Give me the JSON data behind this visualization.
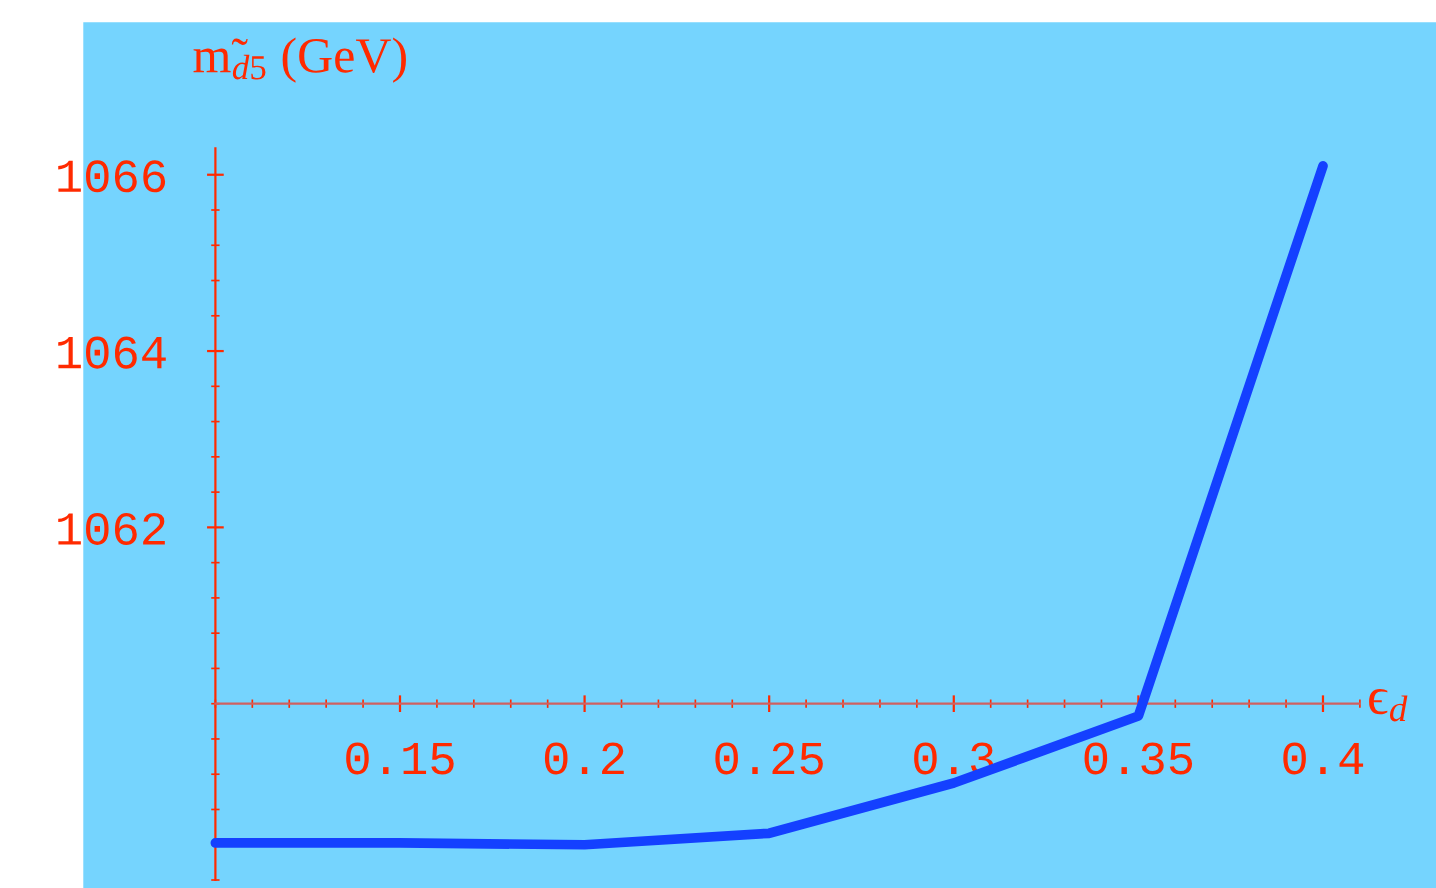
{
  "chart_data": {
    "type": "line",
    "xlabel": "ϵ$_{d}$",
    "ylabel": "m̃$_{d5}$ (GeV)",
    "x": [
      0.1,
      0.15,
      0.2,
      0.25,
      0.3,
      0.35,
      0.4
    ],
    "series": [
      {
        "color": "#1440ff",
        "values": [
          1058.42,
          1058.42,
          1058.4,
          1058.53,
          1059.1,
          1059.86,
          1066.1
        ]
      }
    ],
    "xlim": [
      0.1,
      0.41
    ],
    "ylim": [
      1058,
      1066.3
    ],
    "xticks": [
      0.15,
      0.2,
      0.25,
      0.3,
      0.35,
      0.4
    ],
    "yticks": [
      1062,
      1064,
      1066
    ],
    "grid": false,
    "legend": false,
    "marker": "none",
    "line_style": "solid"
  }
}
